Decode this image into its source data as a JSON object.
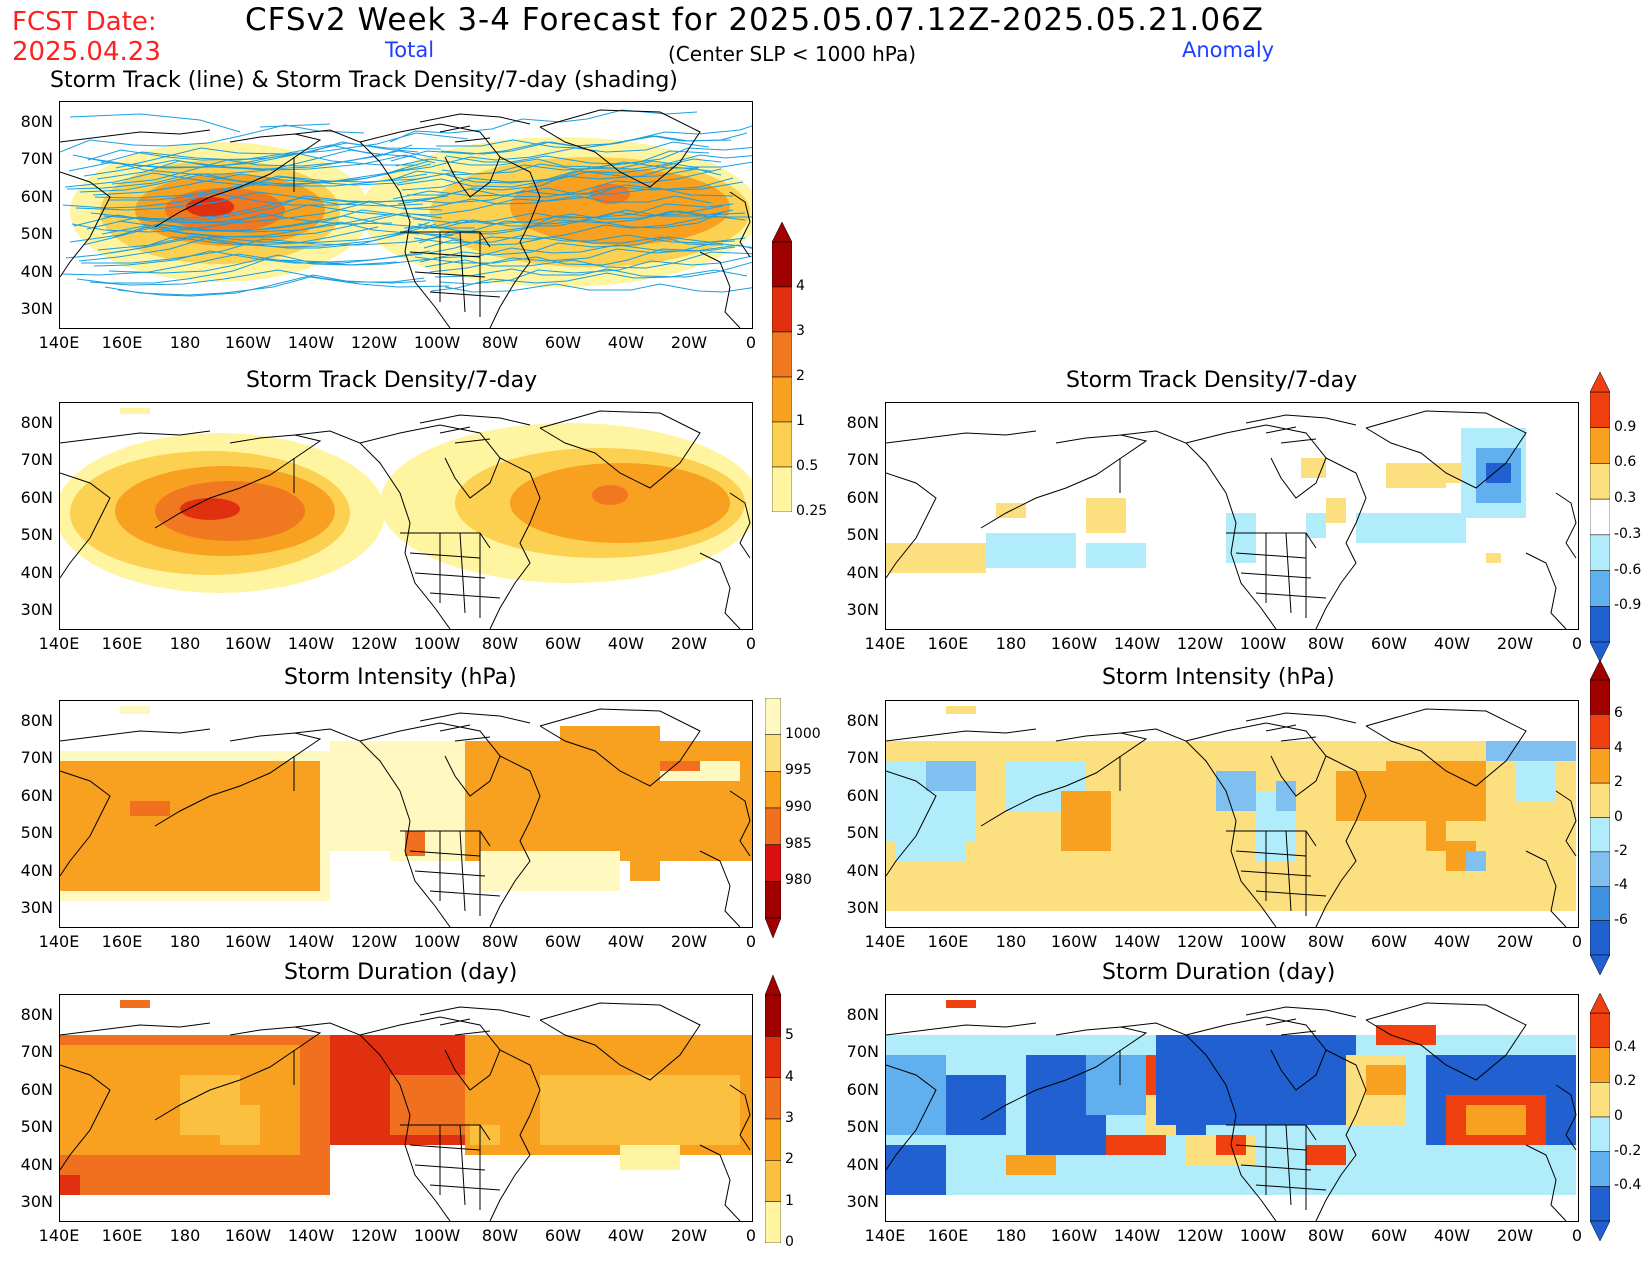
{
  "header": {
    "fcst_label": "FCST Date:",
    "fcst_date": "2025.04.23",
    "main_title": "CFSv2 Week 3-4 Forecast for 2025.05.07.12Z-2025.05.21.06Z",
    "total_label": "Total",
    "center_label": "(Center SLP < 1000 hPa)",
    "anomaly_label": "Anomaly"
  },
  "axes": {
    "lat_labels": [
      "80N",
      "70N",
      "60N",
      "50N",
      "40N",
      "30N"
    ],
    "lon_labels": [
      "140E",
      "160E",
      "180",
      "160W",
      "140W",
      "120W",
      "100W",
      "80W",
      "60W",
      "40W",
      "20W",
      "0"
    ]
  },
  "panels": {
    "track": {
      "title": "Storm Track (line) & Storm Track Density/7-day (shading)"
    },
    "density_total": {
      "title": "Storm Track Density/7-day"
    },
    "density_anom": {
      "title": "Storm Track Density/7-day"
    },
    "intensity_total": {
      "title": "Storm Intensity (hPa)"
    },
    "intensity_anom": {
      "title": "Storm Intensity (hPa)"
    },
    "duration_total": {
      "title": "Storm Duration (day)"
    },
    "duration_anom": {
      "title": "Storm Duration (day)"
    }
  },
  "colorbars": {
    "density_total": {
      "labels": [
        "4",
        "3",
        "2",
        "1",
        "0.5",
        "0.25"
      ],
      "colors": [
        "#a00000",
        "#e03010",
        "#f07820",
        "#f8a020",
        "#fcd050",
        "#fff4a0"
      ]
    },
    "density_anom": {
      "labels": [
        "0.9",
        "0.6",
        "0.3",
        "-0.3",
        "-0.6",
        "-0.9"
      ],
      "colors": [
        "#f04010",
        "#f8a020",
        "#fce080",
        "#ffffff",
        "#b0ecfa",
        "#60b0f0",
        "#2060d0"
      ]
    },
    "intensity_total": {
      "labels": [
        "1000",
        "995",
        "990",
        "985",
        "980"
      ],
      "colors": [
        "#fff8c0",
        "#fce080",
        "#f8a020",
        "#f07020",
        "#d81010",
        "#a00000"
      ]
    },
    "intensity_anom": {
      "labels": [
        "6",
        "4",
        "2",
        "0",
        "-2",
        "-4",
        "-6"
      ],
      "colors": [
        "#a00000",
        "#f04010",
        "#f8a020",
        "#fce080",
        "#b0ecfa",
        "#80c0f0",
        "#4090e0",
        "#2060d0"
      ]
    },
    "duration_total": {
      "labels": [
        "5",
        "4",
        "3",
        "2",
        "1",
        "0"
      ],
      "colors": [
        "#a00000",
        "#e03010",
        "#f07020",
        "#f8a020",
        "#fcc040",
        "#fff4a0"
      ]
    },
    "duration_anom": {
      "labels": [
        "0.4",
        "0.2",
        "0",
        "-0.2",
        "-0.4"
      ],
      "colors": [
        "#f04010",
        "#f8a020",
        "#fce080",
        "#b0ecfa",
        "#60b0f0",
        "#2060d0"
      ]
    }
  }
}
